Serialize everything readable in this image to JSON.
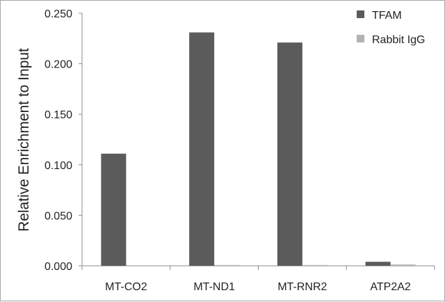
{
  "chart_data": {
    "type": "bar",
    "title": "",
    "xlabel": "",
    "ylabel": "Relative Enrichment to Input",
    "categories": [
      "MT-CO2",
      "MT-ND1",
      "MT-RNR2",
      "ATP2A2"
    ],
    "series": [
      {
        "name": "TFAM",
        "values": [
          0.111,
          0.231,
          0.221,
          0.004
        ],
        "color": "#5b5b5b"
      },
      {
        "name": "Rabbit IgG",
        "values": [
          0.0,
          0.0008,
          0.0008,
          0.0013
        ],
        "color": "#b3b3b3"
      }
    ],
    "ylim": [
      0,
      0.25
    ],
    "yticks": [
      "0.000",
      "0.050",
      "0.100",
      "0.150",
      "0.200",
      "0.250"
    ],
    "grid": false,
    "legend_position": "top-right"
  }
}
